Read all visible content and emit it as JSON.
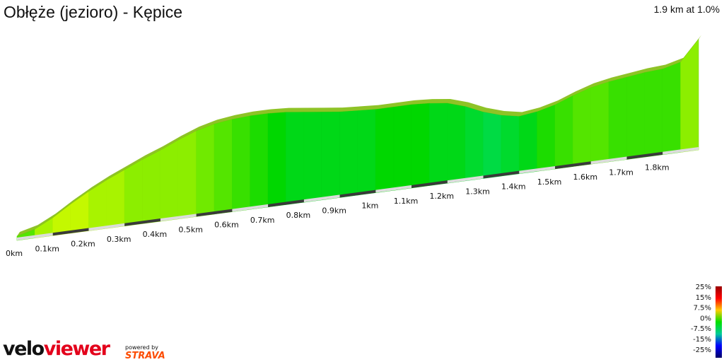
{
  "header": {
    "title": "Obłęże (jezioro) - Kępice",
    "summary": "1.9 km at 1.0%"
  },
  "branding": {
    "logo_part1": "velo",
    "logo_part2": "viewer",
    "powered_by": "powered by",
    "strava": "STRAVA",
    "colors": {
      "velo": "#111111",
      "viewer": "#e3001b",
      "strava": "#fc4c02"
    }
  },
  "chart_data": {
    "type": "area",
    "title": "Obłęże (jezioro) - Kępice",
    "subtitle": "1.9 km at 1.0%",
    "xlabel": "",
    "ylabel": "",
    "xlim": [
      0,
      1.9
    ],
    "x_unit": "km",
    "tick_labels": [
      "0km",
      "0.1km",
      "0.2km",
      "0.3km",
      "0.4km",
      "0.5km",
      "0.6km",
      "0.7km",
      "0.8km",
      "0.9km",
      "1km",
      "1.1km",
      "1.2km",
      "1.3km",
      "1.4km",
      "1.5km",
      "1.6km",
      "1.7km",
      "1.8km"
    ],
    "profile": {
      "distance_km": [
        0,
        0.05,
        0.1,
        0.15,
        0.2,
        0.25,
        0.3,
        0.35,
        0.4,
        0.45,
        0.5,
        0.55,
        0.6,
        0.65,
        0.7,
        0.75,
        0.8,
        0.85,
        0.9,
        0.95,
        1.0,
        1.05,
        1.1,
        1.15,
        1.2,
        1.25,
        1.3,
        1.35,
        1.4,
        1.45,
        1.5,
        1.55,
        1.6,
        1.65,
        1.7,
        1.75,
        1.8,
        1.85,
        1.9
      ],
      "relative_height": [
        0,
        0.04,
        0.12,
        0.22,
        0.31,
        0.39,
        0.46,
        0.53,
        0.59,
        0.66,
        0.72,
        0.76,
        0.78,
        0.79,
        0.79,
        0.78,
        0.76,
        0.74,
        0.72,
        0.71,
        0.7,
        0.7,
        0.7,
        0.69,
        0.67,
        0.62,
        0.55,
        0.5,
        0.47,
        0.49,
        0.53,
        0.59,
        0.64,
        0.67,
        0.69,
        0.71,
        0.72,
        0.76,
        0.94
      ],
      "gradient_pct": [
        3,
        6,
        7,
        7,
        6,
        6,
        5,
        5,
        5,
        5,
        4,
        3,
        2,
        1,
        0,
        -1,
        -1,
        -1,
        -1,
        -1,
        0,
        0,
        0,
        -1,
        -1,
        -2,
        -3,
        -2,
        -1,
        1,
        2,
        3,
        3,
        2,
        2,
        2,
        2,
        5,
        9
      ]
    },
    "legend": {
      "placement": "bottom-right",
      "labels": [
        "25%",
        "15%",
        "7.5%",
        "0%",
        "-7.5%",
        "-15%",
        "-25%"
      ],
      "values": [
        25,
        15,
        7.5,
        0,
        -7.5,
        -15,
        -25
      ],
      "colors": [
        "#990000",
        "#ff0000",
        "#ffcc00",
        "#00e000",
        "#00cc99",
        "#0000ff",
        "#000066"
      ]
    },
    "grid": false
  }
}
